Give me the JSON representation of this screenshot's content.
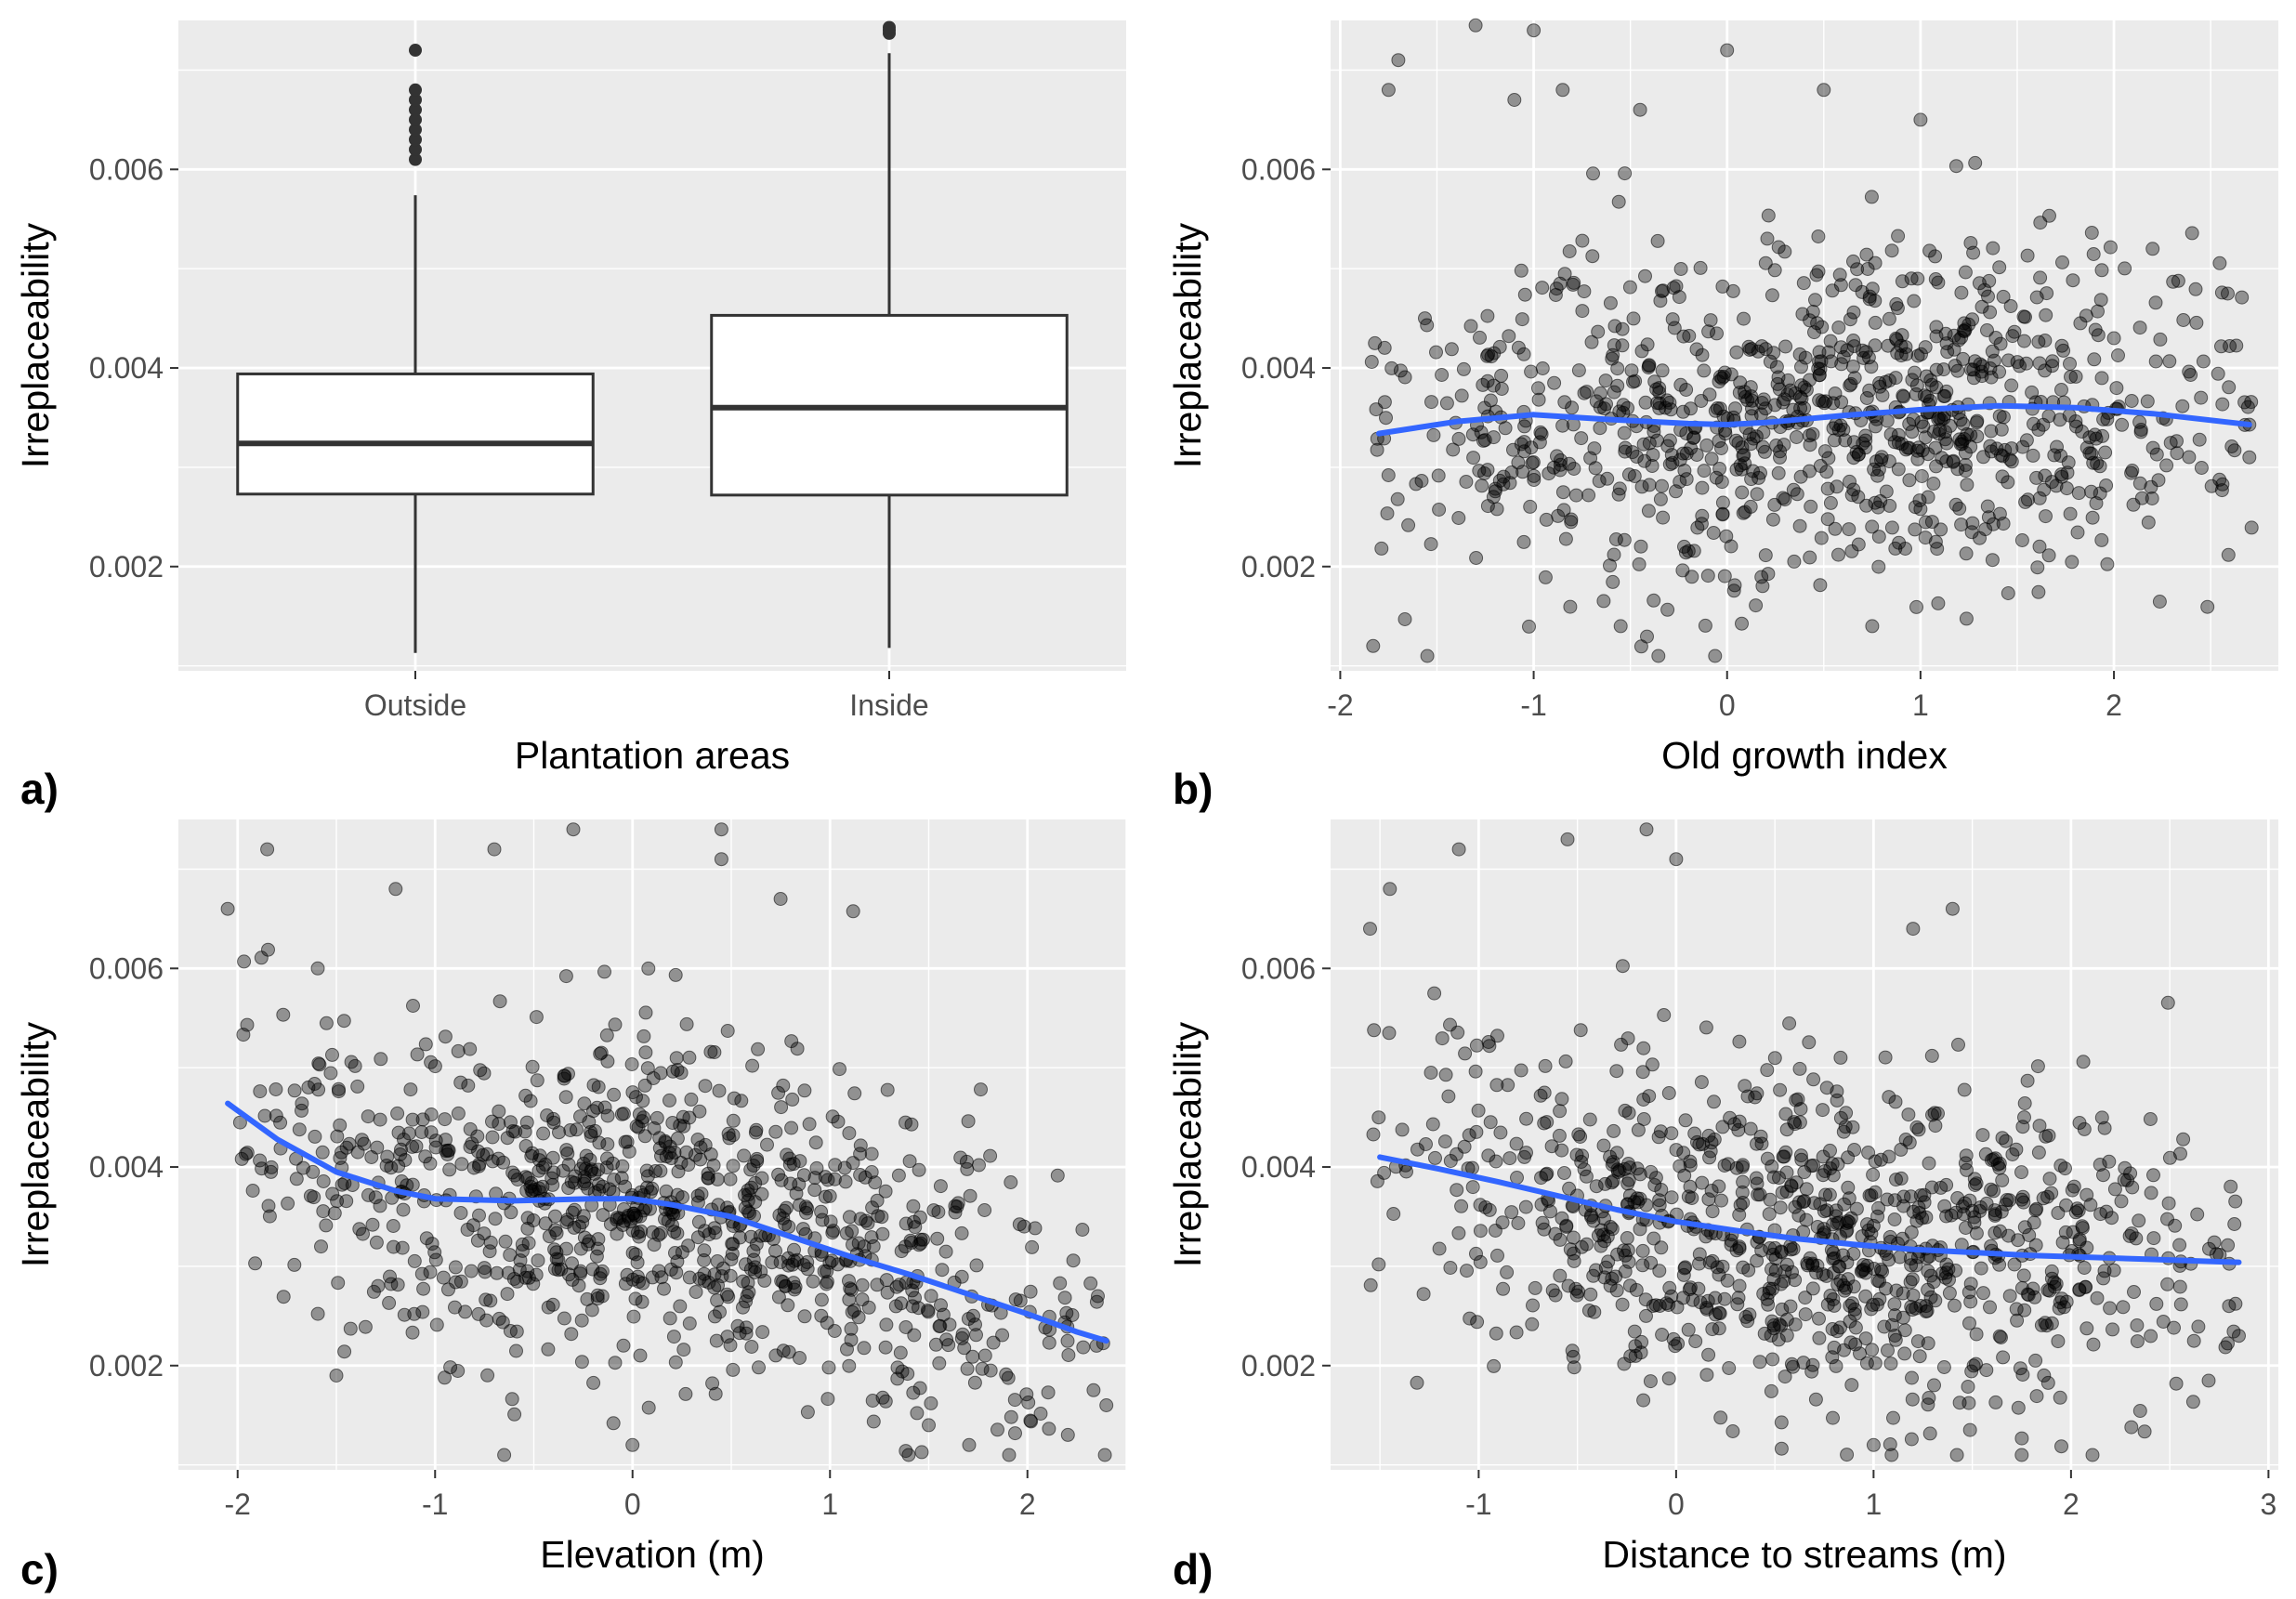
{
  "figure": {
    "panel_labels": [
      "a)",
      "b)",
      "c)",
      "d)"
    ],
    "colors": {
      "panel_background": "#ebebeb",
      "grid_major": "#ffffff",
      "points": "#000000",
      "smooth_line": "#3366ff",
      "box_fill": "#ffffff",
      "box_stroke": "#333333"
    }
  },
  "chart_data": [
    {
      "type": "box",
      "panel": "a)",
      "xlabel": "Plantation areas",
      "ylabel": "Irreplaceability",
      "ylim": [
        0.00095,
        0.0075
      ],
      "yticks": [
        0.002,
        0.004,
        0.006
      ],
      "ytick_labels": [
        "0.002",
        "0.004",
        "0.006"
      ],
      "categories": [
        "Outside",
        "Inside"
      ],
      "boxes": [
        {
          "category": "Outside",
          "whisker_low": 0.00113,
          "q1": 0.00273,
          "median": 0.00324,
          "q3": 0.00394,
          "whisker_high": 0.00574,
          "outliers": [
            0.0061,
            0.0062,
            0.0063,
            0.0064,
            0.0065,
            0.0066,
            0.0067,
            0.0068,
            0.0072
          ]
        },
        {
          "category": "Inside",
          "whisker_low": 0.00118,
          "q1": 0.00272,
          "median": 0.0036,
          "q3": 0.00453,
          "whisker_high": 0.00717,
          "outliers": [
            0.00737,
            0.0074,
            0.00743
          ]
        }
      ],
      "grid": true
    },
    {
      "type": "scatter",
      "panel": "b)",
      "xlabel": "Old growth index",
      "ylabel": "Irreplaceability",
      "xlim": [
        -2.05,
        2.85
      ],
      "ylim": [
        0.00095,
        0.0075
      ],
      "xticks": [
        -2,
        -1,
        0,
        1,
        2
      ],
      "xtick_labels": [
        "-2",
        "-1",
        "0",
        "1",
        "2"
      ],
      "yticks": [
        0.002,
        0.004,
        0.006
      ],
      "ytick_labels": [
        "0.002",
        "0.004",
        "0.006"
      ],
      "points": {
        "n": 1000,
        "x_range": [
          -1.85,
          2.72
        ],
        "y_range": [
          0.0011,
          0.00745
        ],
        "seed": 17,
        "highlighted": [
          [
            -1.3,
            0.00745
          ],
          [
            -1.0,
            0.0074
          ],
          [
            -0.85,
            0.0068
          ],
          [
            0.0,
            0.0072
          ],
          [
            -1.75,
            0.0068
          ],
          [
            -1.7,
            0.0071
          ],
          [
            -1.83,
            0.0012
          ],
          [
            -1.55,
            0.0011
          ],
          [
            -0.55,
            0.0014
          ],
          [
            0.75,
            0.0014
          ],
          [
            2.2,
            0.0052
          ],
          [
            2.7,
            0.0031
          ],
          [
            2.45,
            0.0037
          ],
          [
            2.0,
            0.0043
          ],
          [
            -0.45,
            0.0066
          ],
          [
            0.5,
            0.0068
          ],
          [
            1.0,
            0.0065
          ],
          [
            -1.1,
            0.0067
          ]
        ]
      },
      "smooth": {
        "x": [
          -1.8,
          -1.4,
          -1.0,
          -0.6,
          -0.2,
          0.0,
          0.2,
          0.6,
          1.0,
          1.4,
          1.8,
          2.2,
          2.7
        ],
        "y": [
          0.00334,
          0.00346,
          0.00353,
          0.00348,
          0.00344,
          0.00343,
          0.00345,
          0.00352,
          0.00358,
          0.00362,
          0.0036,
          0.00354,
          0.00343
        ]
      },
      "grid": true
    },
    {
      "type": "scatter",
      "panel": "c)",
      "xlabel": "Elevation (m)",
      "ylabel": "Irreplaceability",
      "xlim": [
        -2.3,
        2.5
      ],
      "ylim": [
        0.00095,
        0.0075
      ],
      "xticks": [
        -2,
        -1,
        0,
        1,
        2
      ],
      "xtick_labels": [
        "-2",
        "-1",
        "0",
        "1",
        "2"
      ],
      "yticks": [
        0.002,
        0.004,
        0.006
      ],
      "ytick_labels": [
        "0.002",
        "0.004",
        "0.006"
      ],
      "points": {
        "n": 1000,
        "x_range": [
          -2.05,
          2.4
        ],
        "y_range": [
          0.0011,
          0.0074
        ],
        "seed": 29,
        "highlighted": [
          [
            -2.05,
            0.0066
          ],
          [
            -1.85,
            0.0072
          ],
          [
            -0.3,
            0.0074
          ],
          [
            0.45,
            0.0074
          ],
          [
            0.45,
            0.0071
          ],
          [
            0.75,
            0.0067
          ],
          [
            -0.7,
            0.0072
          ],
          [
            -0.65,
            0.0011
          ],
          [
            0.0,
            0.0012
          ],
          [
            1.5,
            0.0014
          ],
          [
            2.4,
            0.0016
          ],
          [
            2.35,
            0.0022
          ],
          [
            -1.5,
            0.0019
          ],
          [
            -1.2,
            0.0068
          ]
        ]
      },
      "smooth": {
        "x": [
          -2.05,
          -1.8,
          -1.5,
          -1.2,
          -1.0,
          -0.6,
          -0.2,
          0.0,
          0.2,
          0.5,
          0.8,
          1.1,
          1.4,
          1.7,
          2.0,
          2.25,
          2.4
        ],
        "y": [
          0.00464,
          0.00428,
          0.00395,
          0.00376,
          0.00368,
          0.00366,
          0.00368,
          0.00368,
          0.00362,
          0.0035,
          0.0033,
          0.0031,
          0.00292,
          0.00272,
          0.00252,
          0.00234,
          0.00225
        ]
      },
      "grid": true
    },
    {
      "type": "scatter",
      "panel": "d)",
      "xlabel": "Distance to streams (m)",
      "ylabel": "Irreplaceability",
      "xlim": [
        -1.75,
        3.05
      ],
      "ylim": [
        0.00095,
        0.0075
      ],
      "xticks": [
        -1,
        0,
        1,
        2,
        3
      ],
      "xtick_labels": [
        "-1",
        "0",
        "1",
        "2",
        "3"
      ],
      "yticks": [
        0.002,
        0.004,
        0.006
      ],
      "ytick_labels": [
        "0.002",
        "0.004",
        "0.006"
      ],
      "points": {
        "n": 1000,
        "x_range": [
          -1.55,
          2.85
        ],
        "y_range": [
          0.0011,
          0.0074
        ],
        "seed": 41,
        "highlighted": [
          [
            -0.15,
            0.0074
          ],
          [
            -0.55,
            0.0073
          ],
          [
            0.0,
            0.0071
          ],
          [
            -1.1,
            0.0072
          ],
          [
            1.4,
            0.0066
          ],
          [
            1.2,
            0.0064
          ],
          [
            2.85,
            0.0023
          ],
          [
            2.8,
            0.0026
          ],
          [
            1.75,
            0.0011
          ],
          [
            1.0,
            0.0012
          ],
          [
            -1.55,
            0.0064
          ],
          [
            -1.45,
            0.0068
          ]
        ]
      },
      "smooth": {
        "x": [
          -1.5,
          -1.2,
          -0.9,
          -0.6,
          -0.3,
          0.0,
          0.3,
          0.6,
          0.9,
          1.2,
          1.5,
          1.8,
          2.1,
          2.4,
          2.7,
          2.85
        ],
        "y": [
          0.0041,
          0.00398,
          0.00385,
          0.00371,
          0.00357,
          0.00345,
          0.00336,
          0.00328,
          0.00322,
          0.00317,
          0.00314,
          0.00311,
          0.00309,
          0.00307,
          0.00305,
          0.00304
        ]
      },
      "grid": true
    }
  ]
}
